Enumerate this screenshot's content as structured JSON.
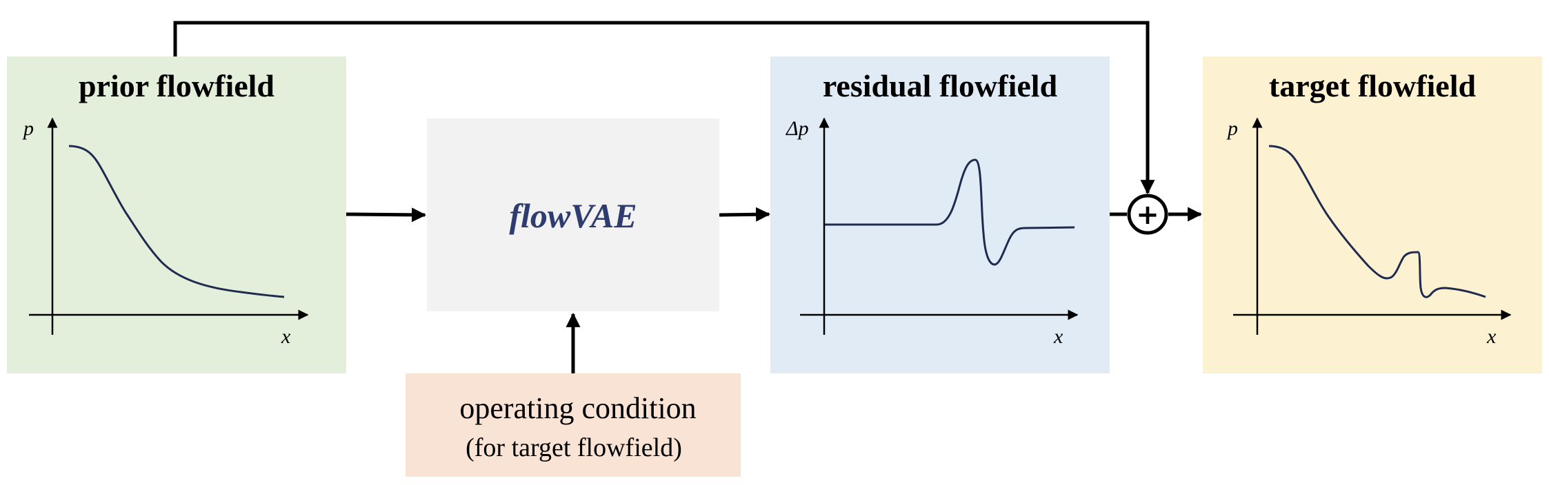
{
  "panels": {
    "prior": {
      "title": "prior flowfield",
      "ylabel": "p",
      "xlabel": "x",
      "fill": "#e4efdb"
    },
    "residual": {
      "title": "residual flowfield",
      "ylabel": "Δp",
      "xlabel": "x",
      "fill": "#e1ebf5"
    },
    "target": {
      "title": "target flowfield",
      "ylabel": "p",
      "xlabel": "x",
      "fill": "#fcf1d1"
    }
  },
  "model": {
    "label": "flowVAE",
    "fill": "#f2f2f2",
    "text_color": "#2e3c70"
  },
  "condition": {
    "line1": "operating condition",
    "line2": "(for target flowfield)",
    "fill": "#f8e3d5"
  },
  "operator": {
    "symbol": "+",
    "icon": "plus-circle-icon"
  },
  "colors": {
    "curve": "#1f2a4f",
    "lines": "#000000"
  }
}
